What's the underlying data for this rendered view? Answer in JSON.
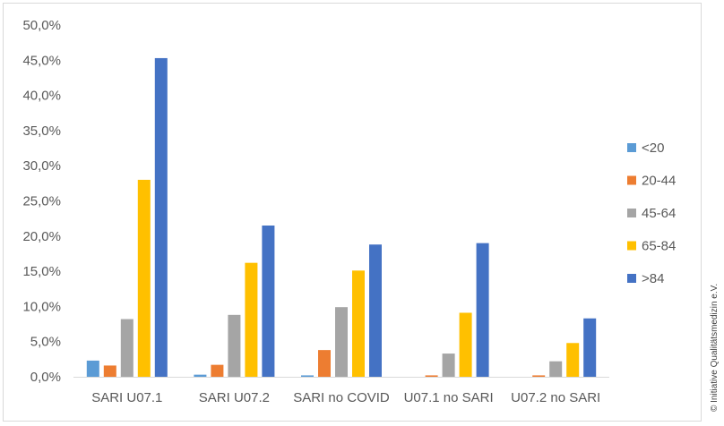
{
  "chart_data": {
    "type": "bar",
    "title": "",
    "xlabel": "",
    "ylabel": "",
    "categories": [
      "SARI U07.1",
      "SARI U07.2",
      "SARI no COVID",
      "U07.1 no SARI",
      "U07.2 no SARI"
    ],
    "ylim": [
      0,
      50
    ],
    "yticks": [
      "0,0%",
      "5,0%",
      "10,0%",
      "15,0%",
      "20,0%",
      "25,0%",
      "30,0%",
      "35,0%",
      "40,0%",
      "45,0%",
      "50,0%"
    ],
    "grid": false,
    "legend_position": "right",
    "series": [
      {
        "name": "<20",
        "color": "#5B9BD5",
        "values": [
          2.3,
          0.3,
          0.2,
          0.0,
          0.0
        ]
      },
      {
        "name": "20-44",
        "color": "#ED7D31",
        "values": [
          1.6,
          1.7,
          3.8,
          0.2,
          0.2
        ]
      },
      {
        "name": "45-64",
        "color": "#A5A5A5",
        "values": [
          8.2,
          8.8,
          9.9,
          3.3,
          2.2
        ]
      },
      {
        "name": "65-84",
        "color": "#FFC000",
        "values": [
          28.0,
          16.2,
          15.1,
          9.1,
          4.8
        ]
      },
      {
        "name": ">84",
        "color": "#4472C4",
        "values": [
          45.3,
          21.5,
          18.8,
          19.0,
          8.3
        ]
      }
    ]
  },
  "copyright": "© Initiative Qualitätsmedizin e.V."
}
